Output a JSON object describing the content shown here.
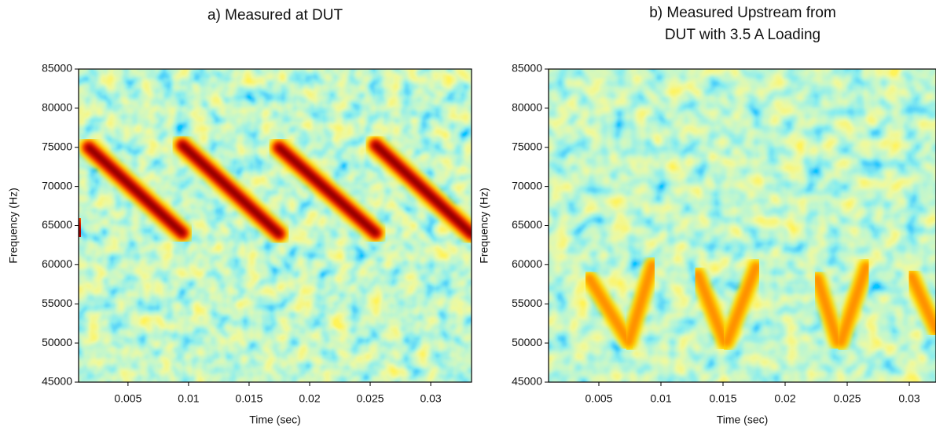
{
  "chart_data": [
    {
      "type": "spectrogram",
      "title": [
        "a) Measured at DUT"
      ],
      "x_label": "Time (sec)",
      "y_label": "Frequency (Hz)",
      "xlim": [
        0.00092,
        0.03337
      ],
      "xticks": [
        0.005,
        0.01,
        0.015,
        0.02,
        0.025,
        0.03
      ],
      "ylim": [
        45000,
        85000
      ],
      "yticks": [
        45000,
        50000,
        55000,
        60000,
        65000,
        70000,
        75000,
        80000,
        85000
      ]
    },
    {
      "type": "spectrogram",
      "title": [
        "b) Measured Upstream from",
        "DUT with 3.5 A Loading"
      ],
      "x_label": "Time (sec)",
      "y_label": "Frequency (Hz)",
      "xlim": [
        0.00095,
        0.03215
      ],
      "xticks": [
        0.005,
        0.01,
        0.015,
        0.02,
        0.025,
        0.03
      ],
      "ylim": [
        45000,
        85000
      ],
      "yticks": [
        45000,
        50000,
        55000,
        60000,
        65000,
        70000,
        75000,
        80000,
        85000
      ]
    }
  ]
}
